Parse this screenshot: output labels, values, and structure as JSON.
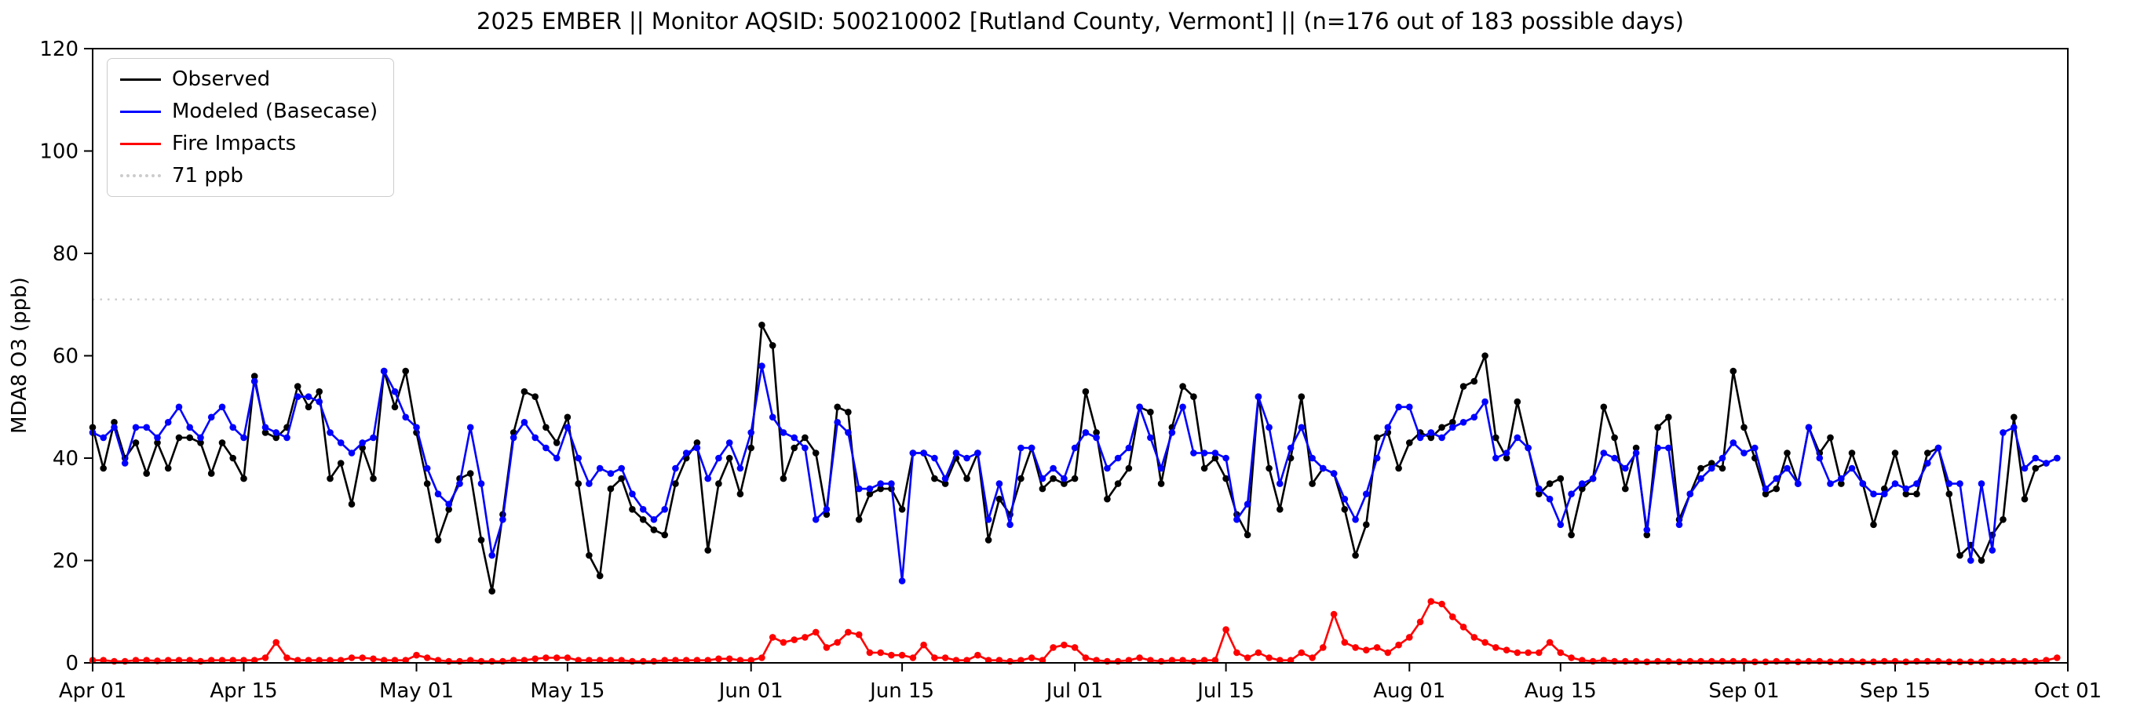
{
  "title": "2025 EMBER || Monitor AQSID: 500210002 [Rutland County, Vermont] || (n=176 out of 183 possible days)",
  "chart_data": {
    "type": "line",
    "title": "2025 EMBER || Monitor AQSID: 500210002 [Rutland County, Vermont] || (n=176 out of 183 possible days)",
    "xlabel": "",
    "ylabel": "MDA8 O3 (ppb)",
    "ylim": [
      0,
      120
    ],
    "yticks": [
      0,
      20,
      40,
      60,
      80,
      100,
      120
    ],
    "x_unit": "days since Apr 01",
    "x_end_day": 183,
    "xticks": [
      {
        "label": "Apr 01",
        "day": 0
      },
      {
        "label": "Apr 15",
        "day": 14
      },
      {
        "label": "May 01",
        "day": 30
      },
      {
        "label": "May 15",
        "day": 44
      },
      {
        "label": "Jun 01",
        "day": 61
      },
      {
        "label": "Jun 15",
        "day": 75
      },
      {
        "label": "Jul 01",
        "day": 91
      },
      {
        "label": "Jul 15",
        "day": 105
      },
      {
        "label": "Aug 01",
        "day": 122
      },
      {
        "label": "Aug 15",
        "day": 136
      },
      {
        "label": "Sep 01",
        "day": 153
      },
      {
        "label": "Sep 15",
        "day": 167
      },
      {
        "label": "Oct 01",
        "day": 183
      }
    ],
    "grid": false,
    "legend_position": "upper left",
    "ref_line": {
      "value": 71,
      "label": "71 ppb",
      "color": "#cccccc",
      "style": "dotted"
    },
    "series": [
      {
        "name": "Observed",
        "color": "#000000",
        "values": [
          46,
          38,
          47,
          40,
          43,
          37,
          43,
          38,
          44,
          44,
          43,
          37,
          43,
          40,
          36,
          56,
          45,
          44,
          46,
          54,
          50,
          53,
          36,
          39,
          31,
          42,
          36,
          57,
          50,
          57,
          45,
          35,
          24,
          30,
          36,
          37,
          24,
          14,
          29,
          45,
          53,
          52,
          46,
          43,
          48,
          35,
          21,
          17,
          34,
          36,
          30,
          28,
          26,
          25,
          35,
          40,
          43,
          22,
          35,
          40,
          33,
          42,
          66,
          62,
          36,
          42,
          44,
          41,
          29,
          50,
          49,
          28,
          33,
          34,
          34,
          30,
          41,
          41,
          36,
          35,
          40,
          36,
          41,
          24,
          32,
          29,
          36,
          42,
          34,
          36,
          35,
          36,
          53,
          45,
          32,
          35,
          38,
          50,
          49,
          35,
          46,
          54,
          52,
          38,
          40,
          36,
          29,
          25,
          52,
          38,
          30,
          40,
          52,
          35,
          38,
          37,
          30,
          21,
          27,
          44,
          45,
          38,
          43,
          45,
          44,
          46,
          47,
          54,
          55,
          60,
          44,
          40,
          51,
          42,
          33,
          35,
          36,
          25,
          34,
          36,
          50,
          44,
          34,
          42,
          25,
          46,
          48,
          28,
          33,
          38,
          39,
          38,
          57,
          46,
          40,
          33,
          34,
          41,
          35,
          46,
          41,
          44,
          35,
          41,
          35,
          27,
          34,
          41,
          33,
          33,
          41,
          42,
          33,
          21,
          23,
          20,
          25,
          28,
          48,
          32,
          38,
          39,
          40
        ]
      },
      {
        "name": "Modeled (Basecase)",
        "color": "#0000ff",
        "values": [
          45,
          44,
          46,
          39,
          46,
          46,
          44,
          47,
          50,
          46,
          44,
          48,
          50,
          46,
          44,
          55,
          46,
          45,
          44,
          52,
          52,
          51,
          45,
          43,
          41,
          43,
          44,
          57,
          53,
          48,
          46,
          38,
          33,
          31,
          35,
          46,
          35,
          21,
          28,
          44,
          47,
          44,
          42,
          40,
          46,
          40,
          35,
          38,
          37,
          38,
          33,
          30,
          28,
          30,
          38,
          41,
          42,
          36,
          40,
          43,
          38,
          45,
          58,
          48,
          45,
          44,
          42,
          28,
          30,
          47,
          45,
          34,
          34,
          35,
          35,
          16,
          41,
          41,
          40,
          36,
          41,
          40,
          41,
          28,
          35,
          27,
          42,
          42,
          36,
          38,
          36,
          42,
          45,
          44,
          38,
          40,
          42,
          50,
          44,
          38,
          45,
          50,
          41,
          41,
          41,
          40,
          28,
          31,
          52,
          46,
          35,
          42,
          46,
          40,
          38,
          37,
          32,
          28,
          33,
          40,
          46,
          50,
          50,
          44,
          45,
          44,
          46,
          47,
          48,
          51,
          40,
          41,
          44,
          42,
          34,
          32,
          27,
          33,
          35,
          36,
          41,
          40,
          38,
          41,
          26,
          42,
          42,
          27,
          33,
          36,
          38,
          40,
          43,
          41,
          42,
          34,
          36,
          38,
          35,
          46,
          40,
          35,
          36,
          38,
          35,
          33,
          33,
          35,
          34,
          35,
          39,
          42,
          35,
          35,
          20,
          35,
          22,
          45,
          46,
          38,
          40,
          39,
          40
        ]
      },
      {
        "name": "Fire Impacts",
        "color": "#ff0000",
        "values": [
          0.5,
          0.5,
          0.3,
          0.3,
          0.5,
          0.5,
          0.4,
          0.5,
          0.5,
          0.5,
          0.3,
          0.5,
          0.5,
          0.5,
          0.5,
          0.5,
          1,
          4,
          1,
          0.5,
          0.5,
          0.5,
          0.5,
          0.5,
          1,
          1,
          0.8,
          0.5,
          0.5,
          0.5,
          1.5,
          1,
          0.5,
          0.3,
          0.3,
          0.5,
          0.3,
          0.3,
          0.3,
          0.5,
          0.5,
          0.8,
          1,
          1,
          1,
          0.5,
          0.5,
          0.5,
          0.5,
          0.5,
          0.3,
          0.3,
          0.3,
          0.5,
          0.5,
          0.5,
          0.5,
          0.5,
          0.8,
          0.8,
          0.5,
          0.5,
          1,
          5,
          4,
          4.5,
          5,
          6,
          3,
          4,
          6,
          5.5,
          2,
          2,
          1.5,
          1.5,
          1,
          3.5,
          1,
          1,
          0.5,
          0.5,
          1.5,
          0.5,
          0.5,
          0.3,
          0.5,
          1,
          0.5,
          3,
          3.5,
          3,
          1,
          0.5,
          0.3,
          0.3,
          0.5,
          1,
          0.5,
          0.3,
          0.5,
          0.5,
          0.3,
          0.5,
          0.5,
          6.5,
          2,
          1,
          2,
          1,
          0.5,
          0.5,
          2,
          1,
          3,
          9.5,
          4,
          3,
          2.5,
          3,
          2,
          3.5,
          5,
          8,
          12,
          11.5,
          9,
          7,
          5,
          4,
          3,
          2.5,
          2,
          2,
          2,
          4,
          2,
          1,
          0.5,
          0.3,
          0.5,
          0.3,
          0.3,
          0.3,
          0.2,
          0.3,
          0.3,
          0.2,
          0.3,
          0.3,
          0.3,
          0.3,
          0.3,
          0.3,
          0.2,
          0.2,
          0.3,
          0.3,
          0.2,
          0.3,
          0.3,
          0.2,
          0.3,
          0.3,
          0.2,
          0.2,
          0.3,
          0.3,
          0.2,
          0.3,
          0.3,
          0.3,
          0.2,
          0.2,
          0.2,
          0.2,
          0.3,
          0.3,
          0.3,
          0.3,
          0.3,
          0.5,
          1
        ]
      }
    ]
  }
}
